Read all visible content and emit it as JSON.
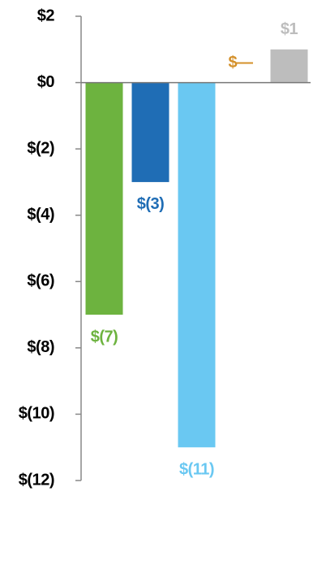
{
  "chart_data": {
    "type": "bar",
    "categories": [
      null,
      null,
      null,
      null,
      null
    ],
    "values": [
      -7,
      -3,
      -11,
      0,
      1
    ],
    "value_labels": [
      "$(7)",
      "$(3)",
      "$(11)",
      "$—",
      "$1"
    ],
    "colors": [
      "#6db33f",
      "#1f6db5",
      "#6ac8f2",
      "#d4902a",
      "#bdbdbd"
    ],
    "label_colors": [
      "#6db33f",
      "#1f6db5",
      "#6ac8f2",
      "#d4902a",
      "#bdbdbd"
    ],
    "ylim": [
      -12,
      2
    ],
    "yticks": [
      {
        "value": 2,
        "label": "$2"
      },
      {
        "value": 0,
        "label": "$0"
      },
      {
        "value": -2,
        "label": "$(2)"
      },
      {
        "value": -4,
        "label": "$(4)"
      },
      {
        "value": -6,
        "label": "$(6)"
      },
      {
        "value": -8,
        "label": "$(8)"
      },
      {
        "value": -10,
        "label": "$(10)"
      },
      {
        "value": -12,
        "label": "$(12)"
      }
    ],
    "grid": false
  }
}
